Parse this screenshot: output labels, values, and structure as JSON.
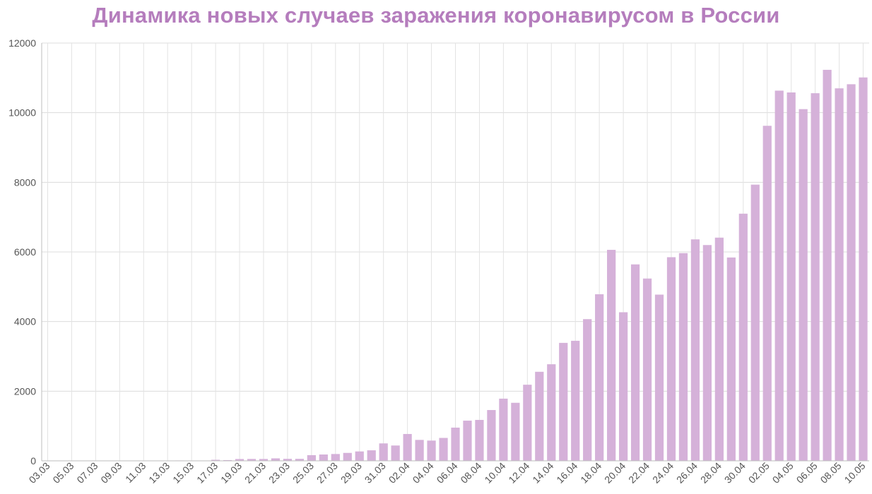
{
  "chart_data": {
    "type": "bar",
    "title": "Динамика новых случаев заражения коронавирусом в России",
    "xlabel": "",
    "ylabel": "",
    "ylim": [
      0,
      12000
    ],
    "yticks": [
      0,
      2000,
      4000,
      6000,
      8000,
      10000,
      12000
    ],
    "grid": true,
    "bar_color": "#d5b1d9",
    "title_color": "#b57dbd",
    "categories": [
      "03.03",
      "04.03",
      "05.03",
      "06.03",
      "07.03",
      "08.03",
      "09.03",
      "10.03",
      "11.03",
      "12.03",
      "13.03",
      "14.03",
      "15.03",
      "16.03",
      "17.03",
      "18.03",
      "19.03",
      "20.03",
      "21.03",
      "22.03",
      "23.03",
      "24.03",
      "25.03",
      "26.03",
      "27.03",
      "28.03",
      "29.03",
      "30.03",
      "31.03",
      "01.04",
      "02.04",
      "03.04",
      "04.04",
      "05.04",
      "06.04",
      "07.04",
      "08.04",
      "09.04",
      "10.04",
      "11.04",
      "12.04",
      "13.04",
      "14.04",
      "15.04",
      "16.04",
      "17.04",
      "18.04",
      "19.04",
      "20.04",
      "21.04",
      "22.04",
      "23.04",
      "24.04",
      "25.04",
      "26.04",
      "27.04",
      "28.04",
      "29.04",
      "30.04",
      "01.05",
      "02.05",
      "03.05",
      "04.05",
      "05.05",
      "06.05",
      "07.05",
      "08.05",
      "09.05",
      "10.05"
    ],
    "tick_labels": [
      "03.03",
      "",
      "05.03",
      "",
      "07.03",
      "",
      "09.03",
      "",
      "11.03",
      "",
      "13.03",
      "",
      "15.03",
      "",
      "17.03",
      "",
      "19.03",
      "",
      "21.03",
      "",
      "23.03",
      "",
      "25.03",
      "",
      "27.03",
      "",
      "29.03",
      "",
      "31.03",
      "",
      "02.04",
      "",
      "04.04",
      "",
      "06.04",
      "",
      "08.04",
      "",
      "10.04",
      "",
      "12.04",
      "",
      "14.04",
      "",
      "16.04",
      "",
      "18.04",
      "",
      "20.04",
      "",
      "22.04",
      "",
      "24.04",
      "",
      "26.04",
      "",
      "28.04",
      "",
      "30.04",
      "",
      "02.05",
      "",
      "04.05",
      "",
      "06.05",
      "",
      "08.05",
      "",
      "10.05"
    ],
    "values": [
      1,
      0,
      0,
      1,
      3,
      0,
      3,
      0,
      8,
      6,
      6,
      11,
      4,
      4,
      30,
      21,
      52,
      54,
      53,
      71,
      57,
      57,
      163,
      182,
      196,
      228,
      270,
      302,
      501,
      440,
      771,
      601,
      582,
      658,
      954,
      1154,
      1175,
      1459,
      1786,
      1667,
      2186,
      2558,
      2774,
      3388,
      3448,
      4070,
      4785,
      6060,
      4268,
      5642,
      5236,
      4774,
      5849,
      5966,
      6361,
      6198,
      6411,
      5841,
      7099,
      7933,
      9623,
      10633,
      10581,
      10102,
      10559,
      11231,
      10699,
      10817,
      11012
    ]
  }
}
